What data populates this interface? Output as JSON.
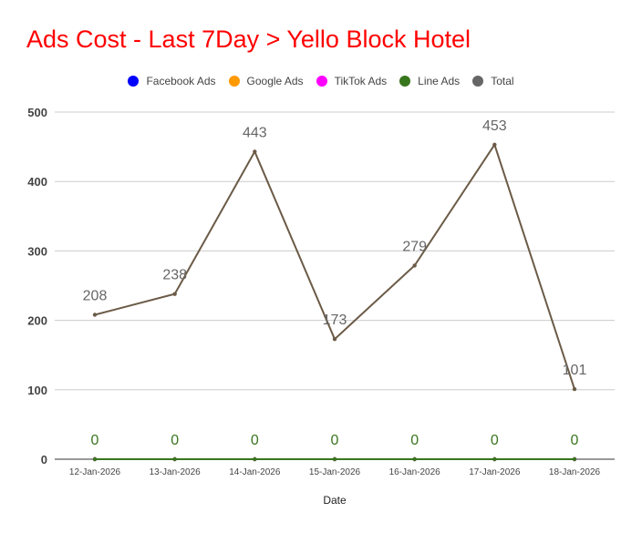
{
  "chart_data": {
    "type": "line",
    "title": "Ads Cost - Last 7Day > Yello Block Hotel",
    "xlabel": "Date",
    "ylabel": "",
    "ylim": [
      0,
      500
    ],
    "yticks": [
      0,
      100,
      200,
      300,
      400,
      500
    ],
    "grid": true,
    "legend_position": "top",
    "categories": [
      "12-Jan-2026",
      "13-Jan-2026",
      "14-Jan-2026",
      "15-Jan-2026",
      "16-Jan-2026",
      "17-Jan-2026",
      "18-Jan-2026"
    ],
    "series": [
      {
        "name": "Facebook Ads",
        "color": "#0000ff",
        "values": [
          0,
          0,
          0,
          0,
          0,
          0,
          0
        ],
        "show_labels": false
      },
      {
        "name": "Google Ads",
        "color": "#ff9900",
        "values": [
          0,
          0,
          0,
          0,
          0,
          0,
          0
        ],
        "show_labels": false
      },
      {
        "name": "TikTok Ads",
        "color": "#ff00ff",
        "values": [
          0,
          0,
          0,
          0,
          0,
          0,
          0
        ],
        "show_labels": false
      },
      {
        "name": "Line Ads",
        "color": "#38761d",
        "values": [
          0,
          0,
          0,
          0,
          0,
          0,
          0
        ],
        "show_labels": true
      },
      {
        "name": "Total",
        "color": "#6b5b47",
        "values": [
          208,
          238,
          443,
          173,
          279,
          453,
          101
        ],
        "show_labels": true
      }
    ]
  },
  "colors": {
    "title": "#ff0000",
    "legend_total": "#666666",
    "grid": "#cccccc",
    "axis": "#333333"
  }
}
